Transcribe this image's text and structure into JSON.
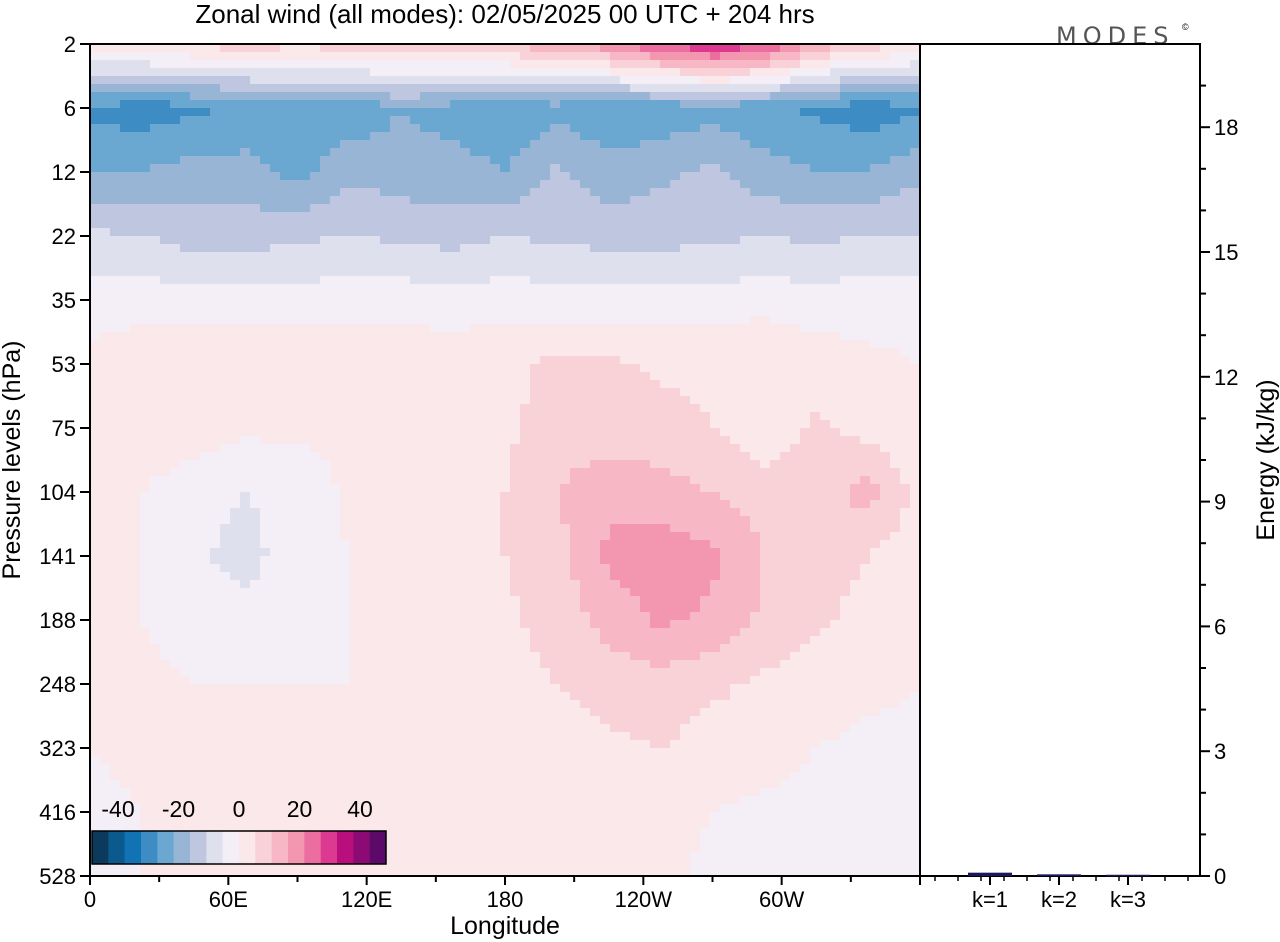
{
  "chart_data": {
    "type": "heatmap",
    "title": "Zonal wind (all modes):  02/05/2025  00 UTC  + 204 hrs",
    "logo": "MODES",
    "logo_mark": "©",
    "xlabel": "Longitude",
    "ylabel": "Pressure levels (hPa)",
    "y2label": "Energy (kJ/kg)",
    "x_ticks": [
      {
        "label": "0",
        "lon": 0
      },
      {
        "label": "60E",
        "lon": 60
      },
      {
        "label": "120E",
        "lon": 120
      },
      {
        "label": "180",
        "lon": 180
      },
      {
        "label": "120W",
        "lon": 240
      },
      {
        "label": "60W",
        "lon": 300
      }
    ],
    "xlim": [
      0,
      360
    ],
    "y_ticks": [
      "2",
      "6",
      "12",
      "22",
      "35",
      "53",
      "75",
      "104",
      "141",
      "188",
      "248",
      "323",
      "416",
      "528"
    ],
    "y2_ticks": [
      "0",
      "3",
      "6",
      "9",
      "12",
      "15",
      "18"
    ],
    "y2lim": [
      0,
      20
    ],
    "colorbar": {
      "labels": [
        "-40",
        "-20",
        "0",
        "20",
        "40"
      ],
      "min": -45,
      "max": 45,
      "colors": [
        "#0b3a5c",
        "#0a5a8e",
        "#1173b4",
        "#3d8cc4",
        "#6aa8d2",
        "#98b5d6",
        "#bfc6e0",
        "#dfe0ee",
        "#f4eff6",
        "#fbe8ea",
        "#f9d2d8",
        "#f7b7c4",
        "#f397b0",
        "#ec6ea0",
        "#dc3a90",
        "#b80f7c",
        "#8c0a73",
        "#5b0a6a"
      ]
    },
    "bar_series": {
      "categories": [
        "k=1",
        "k=2",
        "k=3"
      ],
      "values": [
        0.08,
        0.04,
        0.03
      ],
      "color": "#1a1a5a"
    },
    "field": {
      "comment_units": "m/s",
      "levels": [
        {
          "level": "2",
          "values": [
            4,
            5,
            6,
            8,
            6,
            8,
            9,
            10,
            10,
            14,
            18,
            26,
            30,
            26,
            14,
            8,
            4
          ]
        },
        {
          "level": "6",
          "values": [
            -26,
            -28,
            -26,
            -24,
            -22,
            -24,
            -20,
            -22,
            -24,
            -22,
            -24,
            -24,
            -22,
            -24,
            -26,
            -28,
            -26
          ]
        },
        {
          "level": "12",
          "values": [
            -20,
            -20,
            -18,
            -18,
            -22,
            -16,
            -18,
            -18,
            -20,
            -14,
            -18,
            -16,
            -14,
            -18,
            -20,
            -20,
            -16
          ]
        },
        {
          "level": "22",
          "values": [
            -9,
            -10,
            -12,
            -12,
            -11,
            -10,
            -11,
            -12,
            -10,
            -11,
            -12,
            -12,
            -11,
            -10,
            -11,
            -10,
            -10
          ]
        },
        {
          "level": "35",
          "values": [
            -2,
            -2,
            -3,
            -3,
            -3,
            -2,
            -2,
            -3,
            -2,
            -3,
            -3,
            -3,
            -3,
            -2,
            -3,
            -2,
            -2
          ]
        },
        {
          "level": "53",
          "values": [
            1,
            3,
            4,
            5,
            5,
            4,
            4,
            3,
            4,
            6,
            6,
            4,
            4,
            5,
            3,
            1,
            0
          ]
        },
        {
          "level": "75",
          "values": [
            2,
            3,
            3,
            1,
            1,
            1,
            1,
            1,
            4,
            7,
            7,
            7,
            5,
            1,
            6,
            3,
            1
          ]
        },
        {
          "level": "104",
          "values": [
            1,
            0,
            -3,
            -5,
            -3,
            1,
            1,
            1,
            5,
            10,
            14,
            12,
            10,
            8,
            8,
            12,
            3
          ]
        },
        {
          "level": "141",
          "values": [
            1,
            0,
            -4,
            -7,
            -2,
            0,
            0,
            1,
            5,
            8,
            16,
            18,
            16,
            10,
            8,
            5,
            2
          ]
        },
        {
          "level": "188",
          "values": [
            1,
            0,
            -2,
            -3,
            -1,
            0,
            1,
            1,
            4,
            7,
            12,
            16,
            14,
            9,
            6,
            3,
            1
          ]
        },
        {
          "level": "248",
          "values": [
            1,
            1,
            0,
            0,
            0,
            0,
            1,
            1,
            3,
            5,
            7,
            8,
            6,
            4,
            2,
            1,
            0
          ]
        },
        {
          "level": "323",
          "values": [
            0,
            1,
            1,
            1,
            1,
            1,
            1,
            1,
            2,
            3,
            4,
            5,
            3,
            2,
            0,
            -1,
            -1
          ]
        },
        {
          "level": "416",
          "values": [
            -1,
            0,
            1,
            1,
            1,
            1,
            1,
            1,
            2,
            2,
            2,
            2,
            0,
            -1,
            -2,
            -1,
            -2
          ]
        },
        {
          "level": "528",
          "values": [
            -1,
            0,
            0,
            0,
            0,
            1,
            1,
            1,
            1,
            1,
            1,
            1,
            -1,
            -2,
            -2,
            -1,
            -2
          ]
        }
      ]
    }
  }
}
